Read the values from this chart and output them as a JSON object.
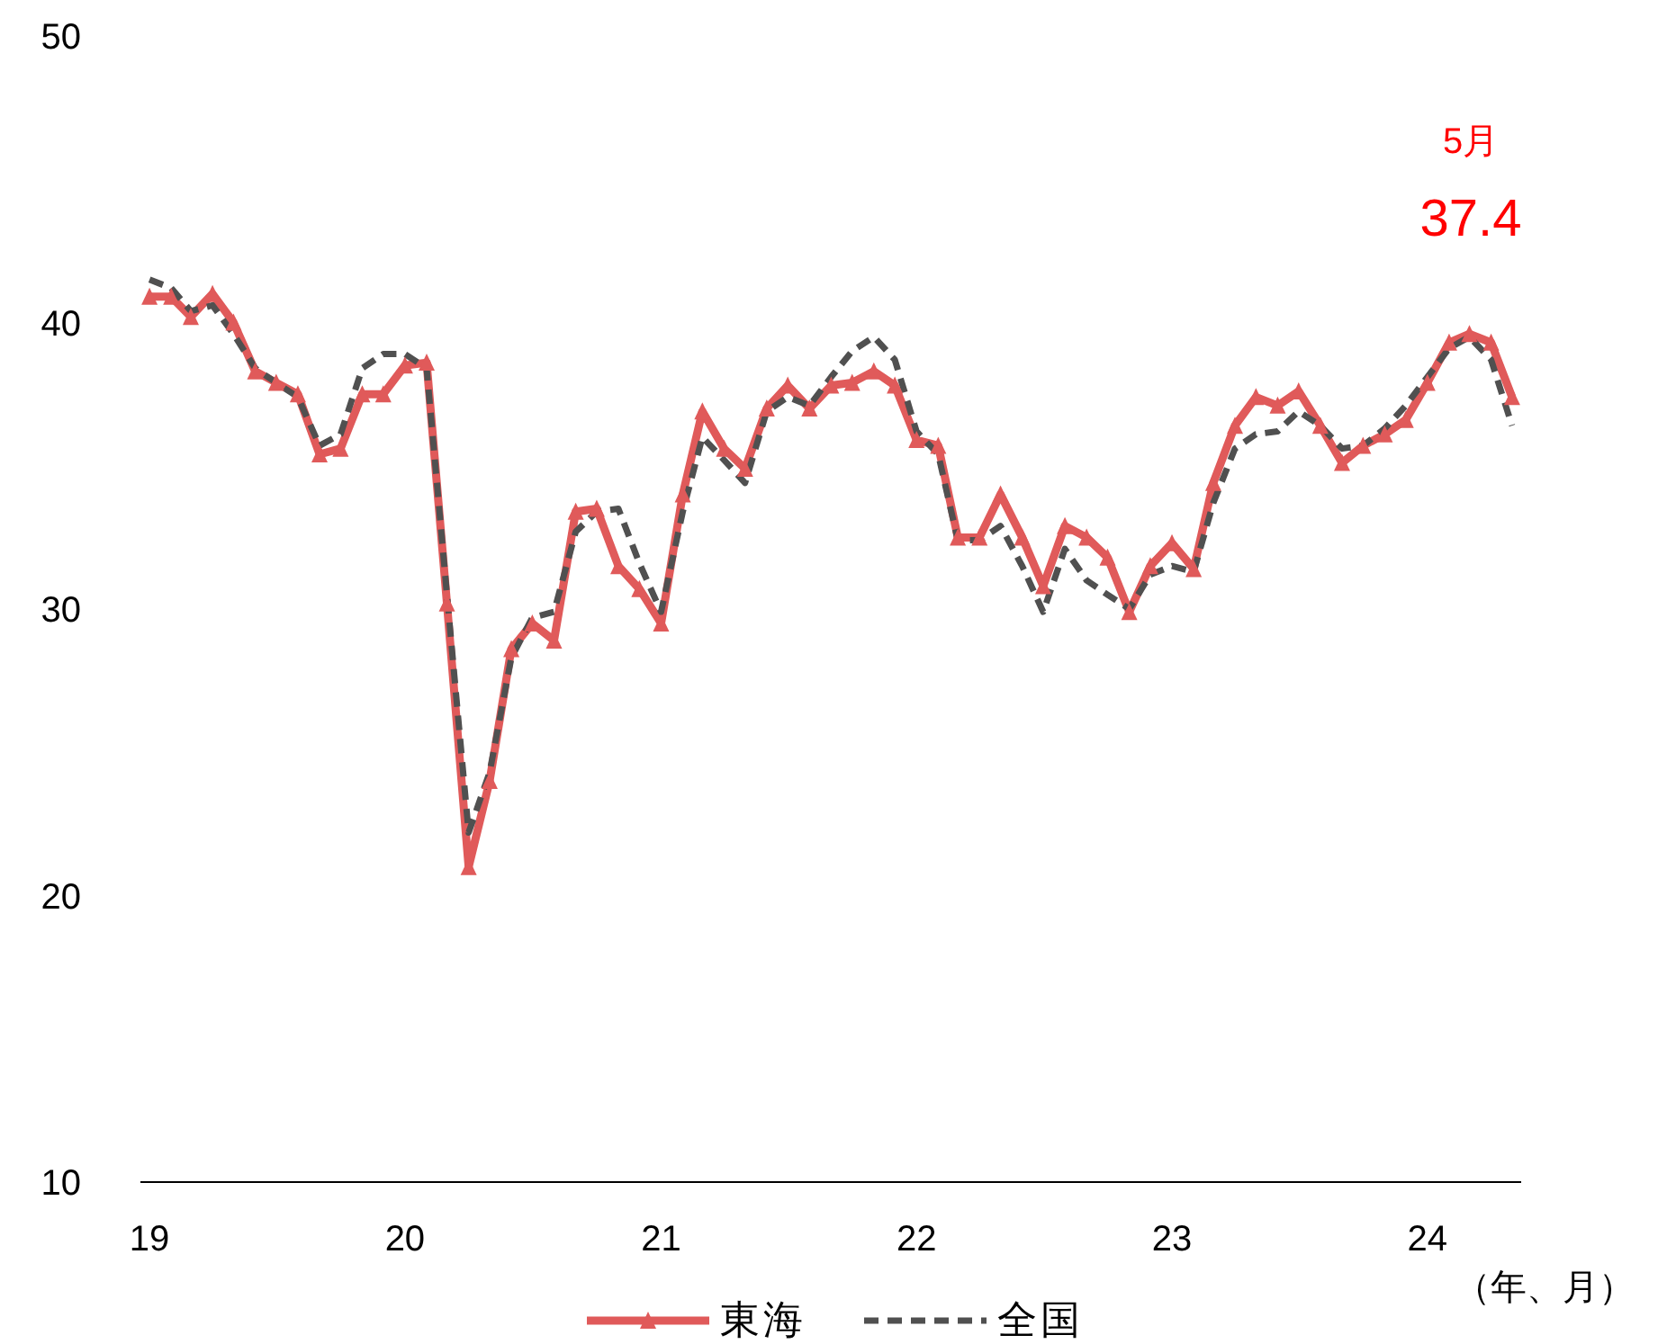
{
  "chart_data": {
    "type": "line",
    "x": [
      "2019-01",
      "2019-02",
      "2019-03",
      "2019-04",
      "2019-05",
      "2019-06",
      "2019-07",
      "2019-08",
      "2019-09",
      "2019-10",
      "2019-11",
      "2019-12",
      "2020-01",
      "2020-02",
      "2020-03",
      "2020-04",
      "2020-05",
      "2020-06",
      "2020-07",
      "2020-08",
      "2020-09",
      "2020-10",
      "2020-11",
      "2020-12",
      "2021-01",
      "2021-02",
      "2021-03",
      "2021-04",
      "2021-05",
      "2021-06",
      "2021-07",
      "2021-08",
      "2021-09",
      "2021-10",
      "2021-11",
      "2021-12",
      "2022-01",
      "2022-02",
      "2022-03",
      "2022-04",
      "2022-05",
      "2022-06",
      "2022-07",
      "2022-08",
      "2022-09",
      "2022-10",
      "2022-11",
      "2022-12",
      "2023-01",
      "2023-02",
      "2023-03",
      "2023-04",
      "2023-05",
      "2023-06",
      "2023-07",
      "2023-08",
      "2023-09",
      "2023-10",
      "2023-11",
      "2023-12",
      "2024-01",
      "2024-02",
      "2024-03",
      "2024-04",
      "2024-05"
    ],
    "series": [
      {
        "name": "東海",
        "color": "#e05a5a",
        "marker": "triangle",
        "line_style": "solid",
        "values": [
          40.9,
          40.9,
          40.2,
          41.0,
          40.0,
          38.3,
          37.9,
          37.5,
          35.4,
          35.6,
          37.5,
          37.5,
          38.5,
          38.6,
          30.2,
          21.0,
          24.0,
          28.6,
          29.5,
          28.9,
          33.4,
          33.5,
          31.5,
          30.7,
          29.5,
          34.0,
          36.9,
          35.6,
          34.9,
          37.0,
          37.8,
          37.0,
          37.8,
          37.9,
          38.3,
          37.8,
          35.9,
          35.7,
          32.5,
          32.5,
          34.0,
          32.5,
          30.8,
          32.9,
          32.5,
          31.8,
          29.9,
          31.5,
          32.3,
          31.4,
          34.4,
          36.4,
          37.4,
          37.1,
          37.6,
          36.4,
          35.1,
          35.7,
          36.1,
          36.6,
          37.9,
          39.3,
          39.6,
          39.3,
          37.4
        ]
      },
      {
        "name": "全国",
        "color": "#505050",
        "marker": "none",
        "line_style": "dashed",
        "values": [
          41.5,
          41.2,
          40.4,
          40.6,
          39.6,
          38.4,
          37.9,
          37.4,
          35.7,
          36.1,
          38.4,
          38.9,
          38.9,
          38.4,
          30.5,
          22.2,
          24.3,
          28.3,
          29.7,
          29.9,
          32.7,
          33.4,
          33.5,
          31.6,
          29.9,
          33.4,
          36.0,
          35.2,
          34.4,
          36.9,
          37.4,
          37.1,
          38.1,
          39.0,
          39.5,
          38.7,
          36.2,
          35.4,
          32.4,
          32.4,
          32.9,
          31.5,
          29.9,
          32.1,
          31.0,
          30.5,
          30.0,
          31.2,
          31.5,
          31.3,
          33.7,
          35.6,
          36.1,
          36.2,
          36.9,
          36.4,
          35.6,
          35.7,
          36.3,
          37.1,
          38.1,
          39.1,
          39.5,
          38.7,
          36.4
        ]
      }
    ],
    "xlim": [
      "2018-12-19",
      "2024-05-14"
    ],
    "xticks": [
      {
        "value": "2019-01",
        "label": "19"
      },
      {
        "value": "2020-01",
        "label": "20"
      },
      {
        "value": "2021-01",
        "label": "21"
      },
      {
        "value": "2022-01",
        "label": "22"
      },
      {
        "value": "2023-01",
        "label": "23"
      },
      {
        "value": "2024-01",
        "label": "24"
      }
    ],
    "ylim": [
      10,
      50
    ],
    "yticks": [
      10,
      20,
      30,
      40,
      50
    ],
    "xlabel": "（年、月）",
    "annotations": [
      "5月",
      "37.4"
    ],
    "legend": "bottom"
  }
}
